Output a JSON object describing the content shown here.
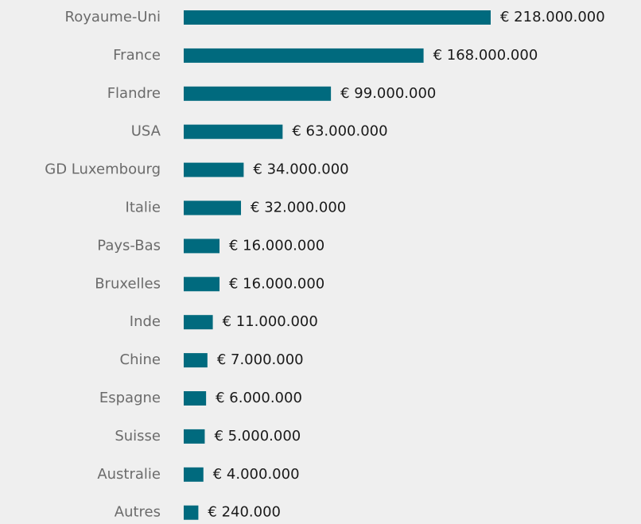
{
  "chart_data": {
    "type": "bar",
    "orientation": "horizontal",
    "color": "#006a7e",
    "categories": [
      "Royaume-Uni",
      "France",
      "Flandre",
      "USA",
      "GD Luxembourg",
      "Italie",
      "Pays-Bas",
      "Bruxelles",
      "Inde",
      "Chine",
      "Espagne",
      "Suisse",
      "Australie",
      "Autres"
    ],
    "values": [
      218000000,
      168000000,
      99000000,
      63000000,
      34000000,
      32000000,
      16000000,
      16000000,
      11000000,
      7000000,
      6000000,
      5000000,
      4000000,
      240000
    ],
    "value_labels": [
      "€ 218.000.000",
      "€ 168.000.000",
      "€ 99.000.000",
      "€ 63.000.000",
      "€ 34.000.000",
      "€ 32.000.000",
      "€ 16.000.000",
      "€ 16.000.000",
      "€ 11.000.000",
      "€ 7.000.000",
      "€ 6.000.000",
      "€ 5.000.000",
      "€ 4.000.000",
      "€ 240.000"
    ]
  }
}
